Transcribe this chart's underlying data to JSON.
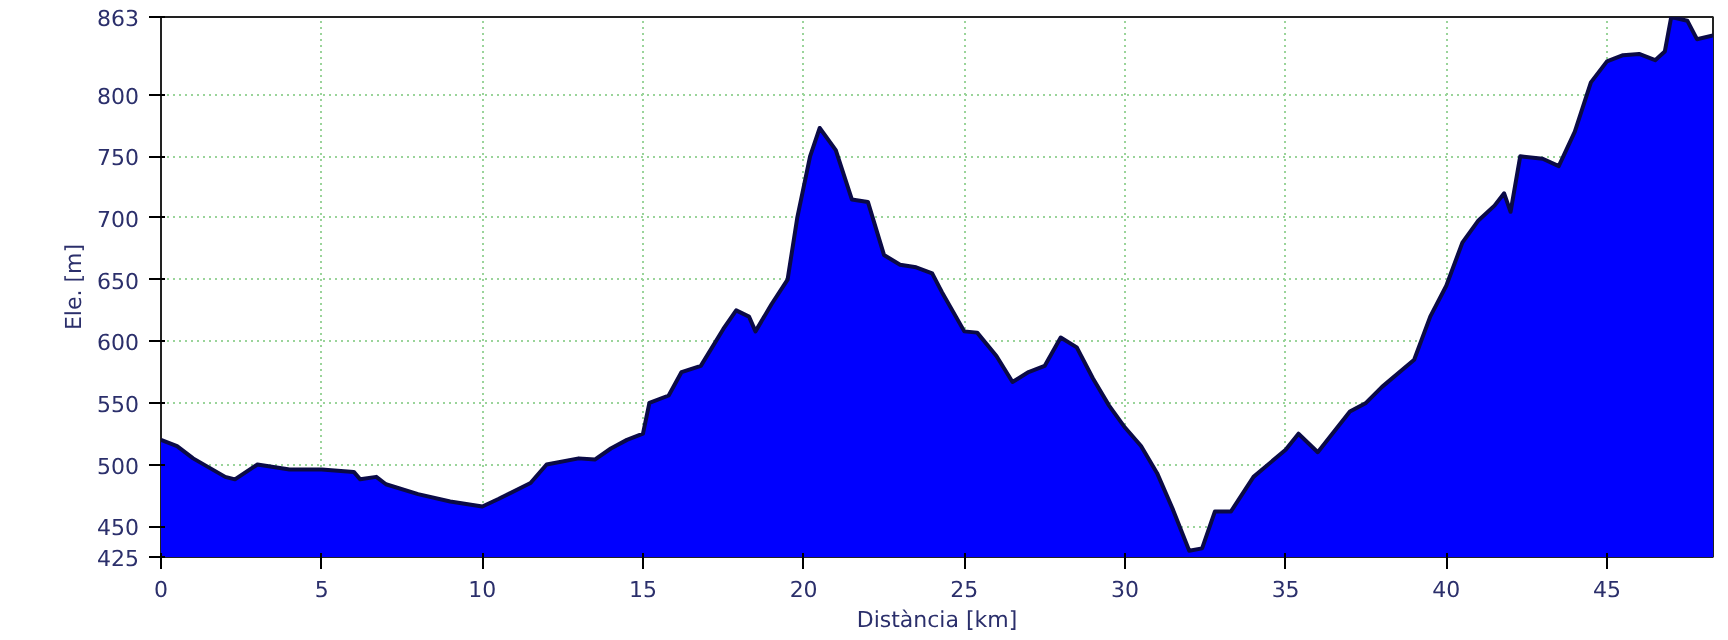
{
  "chart_data": {
    "type": "area",
    "xlabel": "Distància [km]",
    "ylabel": "Ele. [m]",
    "x": [
      0,
      0.5,
      1,
      2,
      2.3,
      3,
      4,
      5,
      6,
      6.2,
      6.7,
      7,
      8,
      9,
      10,
      10.5,
      11.5,
      12,
      13,
      13.5,
      14,
      14.5,
      15,
      15.2,
      15.8,
      16.2,
      16.8,
      17.5,
      17.9,
      18.3,
      18.5,
      19,
      19.5,
      19.8,
      20.2,
      20.5,
      21,
      21.5,
      22,
      22.5,
      23,
      23.5,
      24,
      24.3,
      25,
      25.4,
      26,
      26.5,
      27,
      27.5,
      28,
      28.5,
      29,
      29.5,
      30,
      30.5,
      31,
      31.5,
      32,
      32.4,
      32.8,
      33.3,
      34,
      35,
      35.4,
      36,
      37,
      37.5,
      38,
      39,
      39.5,
      40,
      40.5,
      41,
      41.5,
      41.8,
      42,
      42.3,
      43,
      43.5,
      44,
      44.5,
      45,
      45.5,
      46,
      46.5,
      46.8,
      47,
      47.5,
      47.8,
      48.3
    ],
    "series": [
      {
        "color": "#0000ff",
        "values": [
          520,
          515,
          505,
          490,
          488,
          500,
          496,
          496,
          494,
          488,
          490,
          484,
          476,
          470,
          466,
          472,
          485,
          500,
          505,
          504,
          513,
          520,
          525,
          550,
          556,
          575,
          580,
          610,
          625,
          620,
          608,
          630,
          650,
          700,
          750,
          773,
          755,
          715,
          713,
          670,
          662,
          660,
          655,
          640,
          608,
          607,
          588,
          567,
          575,
          580,
          603,
          595,
          570,
          548,
          530,
          515,
          493,
          463,
          430,
          432,
          462,
          462,
          490,
          512,
          525,
          510,
          543,
          550,
          563,
          585,
          620,
          645,
          680,
          698,
          710,
          720,
          705,
          750,
          748,
          742,
          770,
          810,
          827,
          832,
          833,
          828,
          835,
          863,
          860,
          845,
          848
        ]
      }
    ],
    "xlim": [
      0,
      48.3
    ],
    "ylim": [
      425,
      863
    ],
    "xticks": [
      0,
      5,
      10,
      15,
      20,
      25,
      30,
      35,
      40,
      45
    ],
    "yticks": [
      425,
      450,
      500,
      550,
      600,
      650,
      700,
      750,
      800,
      863
    ],
    "grid": true
  }
}
